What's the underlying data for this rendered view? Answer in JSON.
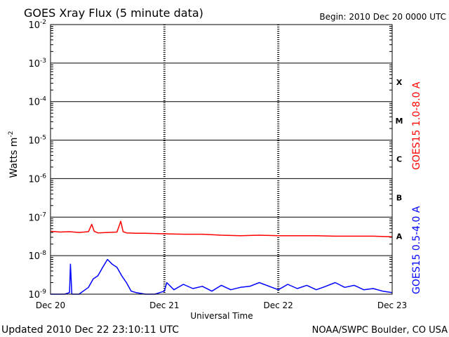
{
  "chart_data": {
    "type": "line",
    "title": "GOES Xray Flux (5 minute data)",
    "begin_label": "Begin:  2010 Dec 20 0000 UTC",
    "xlabel": "Universal Time",
    "ylabel": "Watts m",
    "ylabel_sup": "-2",
    "y_scale": "log",
    "ylim": [
      1e-09,
      0.01
    ],
    "y_ticks": [
      {
        "base": "10",
        "exp": "-2",
        "value": 0.01
      },
      {
        "base": "10",
        "exp": "-3",
        "value": 0.001
      },
      {
        "base": "10",
        "exp": "-4",
        "value": 0.0001
      },
      {
        "base": "10",
        "exp": "-5",
        "value": 1e-05
      },
      {
        "base": "10",
        "exp": "-6",
        "value": 1e-06
      },
      {
        "base": "10",
        "exp": "-7",
        "value": 1e-07
      },
      {
        "base": "10",
        "exp": "-8",
        "value": 1e-08
      },
      {
        "base": "10",
        "exp": "-9",
        "value": 1e-09
      }
    ],
    "x_ticks": [
      "Dec 20",
      "Dec 21",
      "Dec 22",
      "Dec 23"
    ],
    "xlim_hours": [
      0,
      72
    ],
    "flare_classes": [
      {
        "label": "X",
        "value": 0.00032
      },
      {
        "label": "M",
        "value": 3.2e-05
      },
      {
        "label": "C",
        "value": 3.2e-06
      },
      {
        "label": "B",
        "value": 3.2e-07
      },
      {
        "label": "A",
        "value": 3.2e-08
      }
    ],
    "grid": true,
    "series": [
      {
        "name": "GOES15 1.0-8.0 A",
        "color": "#ff0000",
        "x_hours": [
          0,
          2,
          4,
          6,
          8,
          8.7,
          9.2,
          10,
          12,
          14,
          14.8,
          15.3,
          16,
          18,
          20,
          24,
          28,
          32,
          36,
          40,
          44,
          48,
          52,
          56,
          60,
          64,
          68,
          72
        ],
        "values": [
          4.3e-08,
          4.1e-08,
          4.2e-08,
          4e-08,
          4.2e-08,
          6.5e-08,
          4.3e-08,
          3.9e-08,
          4e-08,
          4.1e-08,
          7.8e-08,
          4.2e-08,
          3.9e-08,
          3.8e-08,
          3.8e-08,
          3.7e-08,
          3.6e-08,
          3.6e-08,
          3.4e-08,
          3.3e-08,
          3.4e-08,
          3.3e-08,
          3.3e-08,
          3.3e-08,
          3.2e-08,
          3.2e-08,
          3.2e-08,
          3.1e-08
        ]
      },
      {
        "name": "GOES15 0.5-4.0 A",
        "color": "#0000ff",
        "x_hours": [
          0,
          3,
          4,
          4.2,
          4.5,
          6,
          8,
          9,
          10,
          11,
          12,
          13,
          14,
          15,
          16,
          17,
          18,
          20,
          22,
          24,
          24.5,
          26,
          28,
          30,
          32,
          34,
          36,
          38,
          40,
          42,
          44,
          48,
          50,
          52,
          54,
          56,
          58,
          60,
          62,
          64,
          66,
          68,
          70,
          72
        ],
        "values": [
          1e-09,
          1e-09,
          1.1e-09,
          6e-09,
          1e-09,
          1e-09,
          1.5e-09,
          2.5e-09,
          3e-09,
          5e-09,
          8e-09,
          6e-09,
          5e-09,
          3e-09,
          2e-09,
          1.2e-09,
          1.1e-09,
          1e-09,
          1e-09,
          1.2e-09,
          2e-09,
          1.3e-09,
          1.8e-09,
          1.4e-09,
          1.6e-09,
          1.2e-09,
          1.7e-09,
          1.3e-09,
          1.5e-09,
          1.6e-09,
          2e-09,
          1.3e-09,
          1.8e-09,
          1.4e-09,
          1.7e-09,
          1.3e-09,
          1.6e-09,
          2e-09,
          1.5e-09,
          1.7e-09,
          1.3e-09,
          1.4e-09,
          1.2e-09,
          1.1e-09
        ]
      }
    ]
  },
  "footer": {
    "updated": "Updated 2010 Dec 22 23:10:11 UTC",
    "source": "NOAA/SWPC Boulder, CO USA"
  }
}
